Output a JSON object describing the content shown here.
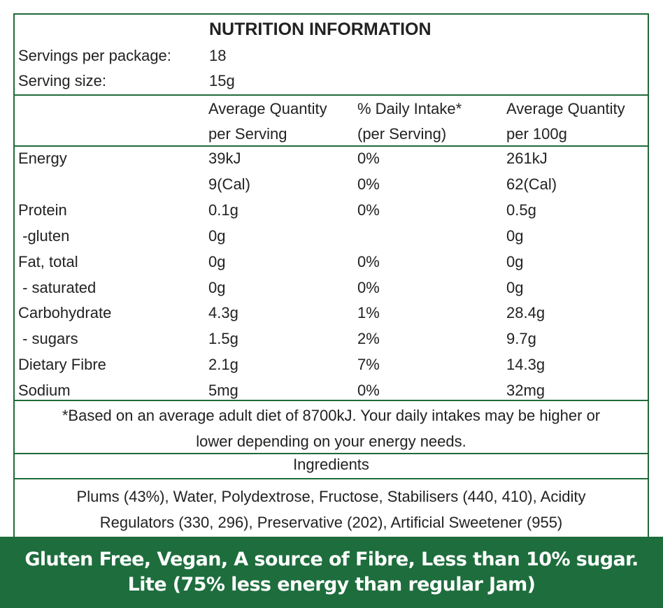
{
  "title": "NUTRITION INFORMATION",
  "servings": {
    "label": "Servings per package:",
    "value": "18"
  },
  "serving_size": {
    "label": "Serving size:",
    "value": "15g"
  },
  "headers": {
    "col1_line1": "Average Quantity",
    "col1_line2": "per Serving",
    "col2_line1": "% Daily Intake*",
    "col2_line2": "(per Serving)",
    "col3_line1": "Average Quantity",
    "col3_line2": "per 100g"
  },
  "rows": [
    {
      "name": "Energy",
      "serving": "39kJ",
      "di": "0%",
      "per100": "261kJ"
    },
    {
      "name": "",
      "serving": "9(Cal)",
      "di": "0%",
      "per100": "62(Cal)"
    },
    {
      "name": "Protein",
      "serving": "0.1g",
      "di": "0%",
      "per100": "0.5g"
    },
    {
      "name": " -gluten",
      "serving": "0g",
      "di": "",
      "per100": "0g"
    },
    {
      "name": "Fat, total",
      "serving": "0g",
      "di": "0%",
      "per100": "0g"
    },
    {
      "name": " - saturated",
      "serving": "0g",
      "di": "0%",
      "per100": "0g"
    },
    {
      "name": "Carbohydrate",
      "serving": "4.3g",
      "di": "1%",
      "per100": "28.4g"
    },
    {
      "name": " - sugars",
      "serving": "1.5g",
      "di": "2%",
      "per100": "9.7g"
    },
    {
      "name": "Dietary Fibre",
      "serving": "2.1g",
      "di": "7%",
      "per100": "14.3g"
    },
    {
      "name": "Sodium",
      "serving": "5mg",
      "di": "0%",
      "per100": "32mg"
    }
  ],
  "footnote": {
    "line1": "*Based on an average adult diet of 8700kJ. Your daily intakes may be higher or",
    "line2": "lower depending on your energy needs."
  },
  "ingredients": {
    "heading": "Ingredients",
    "line1": "Plums (43%), Water, Polydextrose, Fructose, Stabilisers (440, 410), Acidity",
    "line2": "Regulators (330, 296), Preservative (202), Artificial Sweetener (955)"
  },
  "banner": {
    "line1": "Gluten Free, Vegan, A source of Fibre, Less than 10% sugar.",
    "line2": "Lite (75% less energy than regular Jam)"
  },
  "colors": {
    "border": "#1f6b3a",
    "banner_bg": "#1e6d3d",
    "text": "#222222"
  }
}
